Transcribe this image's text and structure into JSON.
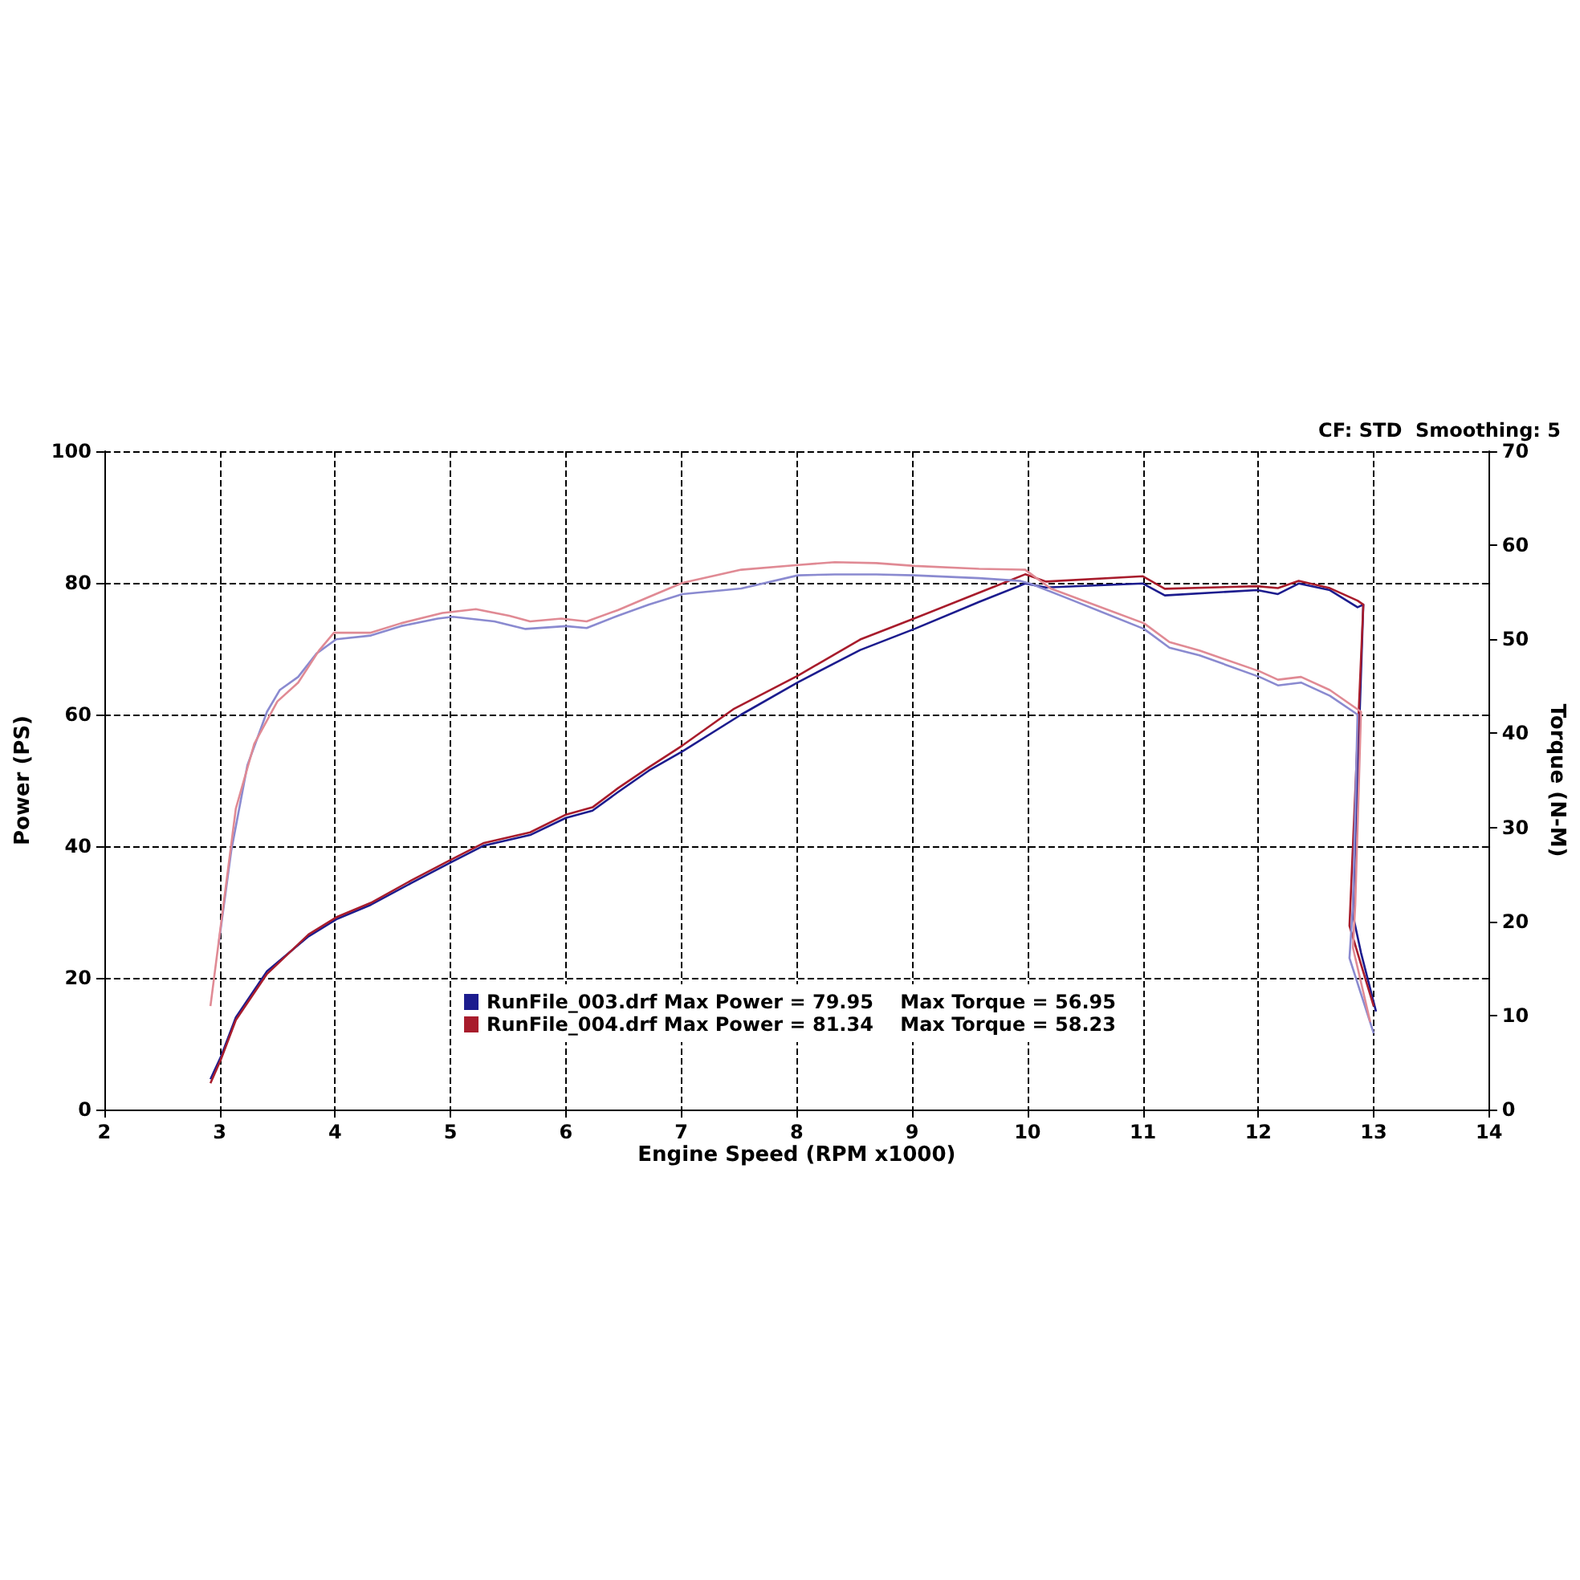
{
  "chart_data": {
    "type": "line",
    "xlabel": "Engine Speed (RPM x1000)",
    "ylabel": "Power (PS)",
    "y2label": "Torque (N-M)",
    "annotations": [
      "CF: STD  Smoothing: 5"
    ],
    "xlim": [
      2,
      14
    ],
    "xticks": [
      2,
      3,
      4,
      5,
      6,
      7,
      8,
      9,
      10,
      11,
      12,
      13,
      14
    ],
    "ylim": [
      0,
      100
    ],
    "yticks": [
      0,
      20,
      40,
      60,
      80,
      100
    ],
    "y2lim": [
      0,
      70
    ],
    "y2ticks": [
      0,
      10,
      20,
      30,
      40,
      50,
      60,
      70
    ],
    "grid": true,
    "legend": "bottom",
    "marker": "none",
    "line_style": "solid",
    "series": [
      {
        "name": "RunFile_003.drf Max Power = 79.95    Max Torque = 56.95",
        "color": "#1c1c8e",
        "x": [
          2.92,
          3.01,
          3.14,
          3.41,
          3.77,
          4.01,
          4.31,
          4.66,
          5.01,
          5.29,
          5.69,
          6.0,
          6.23,
          6.45,
          6.72,
          7.01,
          7.52,
          8.01,
          8.55,
          9.02,
          9.58,
          9.98,
          10.16,
          11.0,
          11.19,
          11.99,
          12.17,
          12.35,
          12.62,
          12.86,
          12.91,
          12.82,
          12.89,
          13.02
        ],
        "values": [
          4.6,
          8.0,
          14.0,
          21.0,
          26.3,
          28.9,
          31.1,
          34.4,
          37.6,
          40.1,
          41.7,
          44.3,
          45.4,
          48.2,
          51.5,
          54.4,
          60.0,
          64.9,
          69.8,
          73.0,
          77.1,
          79.9,
          79.3,
          79.9,
          78.1,
          78.9,
          78.3,
          79.9,
          78.9,
          76.3,
          76.7,
          29.5,
          23.8,
          14.9
        ]
      },
      {
        "name": "RunFile_004.drf Max Power = 81.34    Max Torque = 58.23",
        "color": "#a81c2c",
        "x": [
          2.92,
          3.01,
          3.14,
          3.41,
          3.77,
          4.01,
          4.31,
          4.66,
          5.01,
          5.29,
          5.69,
          6.0,
          6.23,
          6.45,
          6.72,
          7.01,
          7.45,
          8.01,
          8.55,
          9.02,
          9.58,
          9.98,
          10.16,
          11.0,
          11.19,
          11.99,
          12.17,
          12.35,
          12.62,
          12.86,
          12.91,
          12.79,
          12.86,
          13.0
        ],
        "values": [
          4.0,
          7.6,
          13.6,
          20.6,
          26.6,
          29.2,
          31.4,
          34.8,
          38.0,
          40.5,
          42.1,
          44.8,
          45.9,
          48.8,
          52.0,
          55.3,
          60.8,
          65.9,
          71.4,
          74.6,
          78.5,
          81.3,
          80.2,
          81.0,
          79.1,
          79.5,
          79.2,
          80.3,
          79.2,
          77.3,
          76.7,
          27.9,
          23.8,
          15.7
        ]
      },
      {
        "axis": "y2",
        "color": "#8a8ad0",
        "x": [
          2.99,
          3.1,
          3.24,
          3.41,
          3.52,
          3.68,
          3.84,
          4.01,
          4.31,
          4.57,
          4.89,
          5.02,
          5.38,
          5.65,
          6.0,
          6.18,
          6.45,
          6.72,
          7.01,
          7.52,
          8.01,
          8.33,
          8.69,
          9.02,
          9.58,
          9.94,
          10.03,
          10.38,
          11.01,
          11.23,
          11.49,
          12.01,
          12.17,
          12.37,
          12.62,
          12.86,
          12.82,
          12.79,
          13.0
        ],
        "values": [
          17.5,
          27.5,
          36.6,
          42.3,
          44.6,
          46.0,
          48.5,
          50.0,
          50.4,
          51.4,
          52.2,
          52.4,
          51.9,
          51.1,
          51.4,
          51.2,
          52.5,
          53.7,
          54.8,
          55.4,
          56.8,
          56.9,
          56.9,
          56.8,
          56.5,
          56.2,
          55.9,
          54.2,
          51.1,
          49.1,
          48.3,
          46.0,
          45.1,
          45.4,
          44.0,
          42.0,
          21.8,
          16.1,
          8.1
        ]
      },
      {
        "axis": "y2",
        "color": "#e08a94",
        "x": [
          2.92,
          3.14,
          3.3,
          3.5,
          3.68,
          3.86,
          3.99,
          4.31,
          4.57,
          4.93,
          5.22,
          5.51,
          5.69,
          5.96,
          6.18,
          6.45,
          6.72,
          7.01,
          7.52,
          8.01,
          8.33,
          8.69,
          9.02,
          9.58,
          9.98,
          10.2,
          11.01,
          11.23,
          11.49,
          12.01,
          12.17,
          12.37,
          12.62,
          12.89,
          12.84,
          12.82,
          12.97
        ],
        "values": [
          11.0,
          32.0,
          38.9,
          43.4,
          45.4,
          48.8,
          50.7,
          50.7,
          51.7,
          52.8,
          53.2,
          52.5,
          51.9,
          52.2,
          51.9,
          53.1,
          54.5,
          56.0,
          57.4,
          57.9,
          58.2,
          58.1,
          57.8,
          57.5,
          57.4,
          55.4,
          51.7,
          49.7,
          48.8,
          46.6,
          45.7,
          46.0,
          44.6,
          42.3,
          21.8,
          17.2,
          9.3
        ]
      }
    ]
  }
}
